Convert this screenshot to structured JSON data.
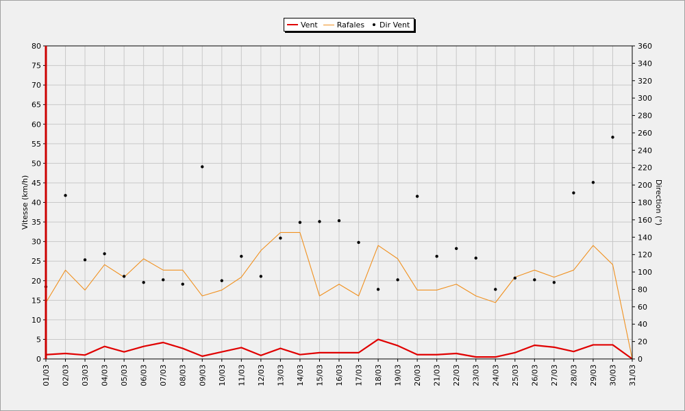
{
  "chart_data": {
    "type": "line",
    "categories": [
      "01/03",
      "02/03",
      "03/03",
      "04/03",
      "05/03",
      "06/03",
      "07/03",
      "08/03",
      "09/03",
      "10/03",
      "11/03",
      "12/03",
      "13/03",
      "14/03",
      "15/03",
      "16/03",
      "17/03",
      "18/03",
      "19/03",
      "20/03",
      "21/03",
      "22/03",
      "23/03",
      "24/03",
      "25/03",
      "26/03",
      "27/03",
      "28/03",
      "29/03",
      "30/03",
      "31/03"
    ],
    "ylabel": "Vitesse (km/h)",
    "y2label": "Direction (°)",
    "ylim": [
      0,
      80
    ],
    "y2lim": [
      0,
      360
    ],
    "yticks": [
      0,
      5,
      10,
      15,
      20,
      25,
      30,
      35,
      40,
      45,
      50,
      55,
      60,
      65,
      70,
      75,
      80
    ],
    "y2ticks": [
      0,
      20,
      40,
      60,
      80,
      100,
      120,
      140,
      160,
      180,
      200,
      220,
      240,
      260,
      280,
      300,
      320,
      340,
      360
    ],
    "grid": true,
    "legend_position": "top-center",
    "series": [
      {
        "name": "Vent",
        "type": "line",
        "axis": "left",
        "color": "#e00000",
        "values": [
          1.1,
          1.4,
          1.0,
          3.2,
          1.8,
          3.2,
          4.2,
          2.7,
          0.7,
          1.8,
          2.9,
          0.9,
          2.7,
          1.1,
          1.6,
          1.6,
          1.6,
          5.0,
          3.4,
          1.1,
          1.1,
          1.4,
          0.5,
          0.5,
          1.6,
          3.5,
          3.0,
          1.9,
          3.6,
          3.6,
          0.0
        ]
      },
      {
        "name": "Rafales",
        "type": "line",
        "axis": "left",
        "color": "#f0901e",
        "values": [
          14.4,
          22.7,
          17.6,
          24.1,
          20.9,
          25.6,
          22.7,
          22.7,
          16.1,
          17.6,
          20.9,
          27.7,
          32.3,
          32.3,
          16.1,
          19.1,
          16.1,
          29.0,
          25.6,
          17.6,
          17.6,
          19.1,
          16.1,
          14.4,
          20.9,
          22.7,
          20.9,
          22.7,
          29.0,
          24.1,
          0.0
        ]
      },
      {
        "name": "Dir Vent",
        "type": "scatter",
        "axis": "right",
        "color": "#000000",
        "values": [
          83,
          188,
          114,
          121,
          95,
          88,
          91,
          86,
          221,
          90,
          118,
          95,
          139,
          157,
          158,
          159,
          134,
          80,
          91,
          187,
          118,
          127,
          116,
          80,
          93,
          91,
          88,
          191,
          203,
          255,
          null
        ]
      }
    ]
  }
}
